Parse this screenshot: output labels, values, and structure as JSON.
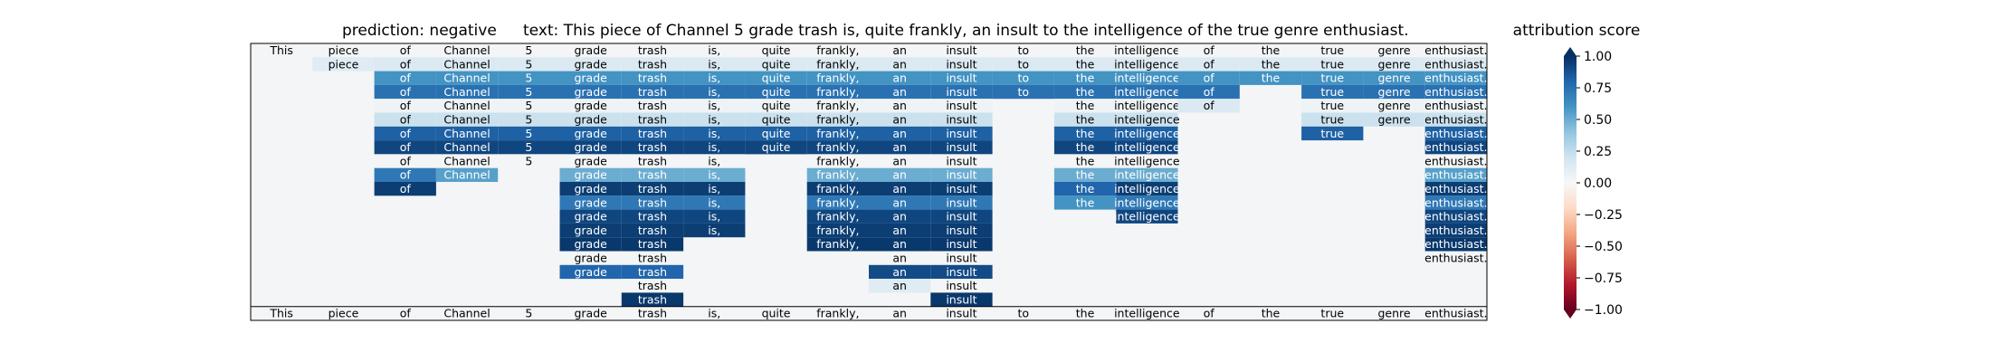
{
  "header": {
    "prediction_label": "prediction:  negative",
    "text_label": "text:  This piece of Channel 5 grade trash is, quite frankly, an insult to the intelligence of the true genre enthusiast.",
    "colorbar_title": "attribution score"
  },
  "chart_data": {
    "type": "heatmap",
    "title": "",
    "tokens": [
      "This",
      "piece",
      "of",
      "Channel",
      "5",
      "grade",
      "trash",
      "is,",
      "quite",
      "frankly,",
      "an",
      "insult",
      "to",
      "the",
      "intelligence",
      "of",
      "the",
      "true",
      "genre",
      "enthusiast."
    ],
    "rows": [
      {
        "start": 0,
        "values": [
          0.02,
          0.02,
          0.02,
          0.02,
          0.02,
          0.02,
          0.02,
          0.02,
          0.02,
          0.02,
          0.02,
          0.02,
          0.02,
          0.02,
          0.02,
          0.02,
          0.02,
          0.02,
          0.02,
          0.02
        ]
      },
      {
        "start": 1,
        "values": [
          0.12,
          0.15,
          0.15,
          0.15,
          0.15,
          0.15,
          0.15,
          0.15,
          0.15,
          0.15,
          0.15,
          0.15,
          0.15,
          0.15,
          0.15,
          0.15,
          0.15,
          0.15,
          0.15
        ]
      },
      {
        "start": 2,
        "values": [
          0.6,
          0.6,
          0.6,
          0.6,
          0.6,
          0.6,
          0.6,
          0.6,
          0.6,
          0.6,
          0.6,
          0.6,
          0.6,
          0.6,
          0.6,
          0.6,
          0.6,
          0.6
        ]
      },
      {
        "start": 2,
        "values": [
          0.75,
          0.75,
          0.75,
          0.75,
          0.75,
          0.75,
          0.75,
          0.75,
          0.75,
          0.75,
          0.75,
          0.75,
          0.75,
          0.75,
          null,
          0.75,
          0.75,
          0.75
        ]
      },
      {
        "start": 2,
        "values": [
          0.05,
          0.05,
          0.05,
          0.05,
          0.05,
          0.05,
          0.05,
          0.05,
          0.05,
          0.05,
          null,
          0.05,
          0.05,
          0.15,
          null,
          0.05,
          0.05,
          0.05
        ]
      },
      {
        "start": 2,
        "values": [
          0.22,
          0.22,
          0.22,
          0.22,
          0.22,
          0.22,
          0.22,
          0.22,
          0.22,
          0.22,
          null,
          0.22,
          0.22,
          null,
          null,
          0.22,
          0.22,
          0.22
        ]
      },
      {
        "start": 2,
        "values": [
          0.82,
          0.82,
          0.82,
          0.82,
          0.82,
          0.82,
          0.82,
          0.82,
          0.82,
          0.82,
          null,
          0.82,
          0.82,
          null,
          null,
          0.82,
          null,
          0.82
        ]
      },
      {
        "start": 2,
        "values": [
          0.92,
          0.92,
          0.92,
          0.92,
          0.92,
          0.92,
          0.92,
          0.92,
          0.92,
          0.92,
          null,
          0.92,
          0.92,
          null,
          null,
          null,
          null,
          0.92
        ]
      },
      {
        "start": 2,
        "values": [
          0.02,
          0.02,
          0.02,
          0.02,
          0.02,
          0.02,
          null,
          0.02,
          0.02,
          0.02,
          null,
          0.02,
          0.02,
          null,
          null,
          null,
          null,
          0.02
        ]
      },
      {
        "start": 2,
        "values": [
          0.72,
          0.55,
          null,
          0.5,
          0.5,
          0.5,
          null,
          0.5,
          0.5,
          0.5,
          null,
          0.5,
          0.5,
          null,
          null,
          null,
          null,
          0.55
        ]
      },
      {
        "start": 2,
        "values": [
          0.95,
          null,
          null,
          0.95,
          0.95,
          0.95,
          null,
          0.95,
          0.95,
          0.95,
          null,
          0.8,
          0.95,
          null,
          null,
          null,
          null,
          0.95
        ]
      },
      {
        "start": 5,
        "values": [
          0.72,
          0.72,
          0.72,
          null,
          0.72,
          0.72,
          0.72,
          null,
          0.6,
          0.72,
          null,
          null,
          null,
          null,
          0.72
        ]
      },
      {
        "start": 5,
        "values": [
          0.92,
          0.92,
          0.92,
          null,
          0.92,
          0.92,
          0.92,
          null,
          null,
          0.92,
          null,
          null,
          null,
          null,
          0.92
        ]
      },
      {
        "start": 5,
        "values": [
          0.95,
          0.95,
          0.95,
          null,
          0.95,
          0.95,
          0.95,
          null,
          null,
          null,
          null,
          null,
          null,
          null,
          0.95
        ]
      },
      {
        "start": 5,
        "values": [
          0.97,
          0.97,
          null,
          null,
          0.97,
          0.97,
          0.97,
          null,
          null,
          null,
          null,
          null,
          null,
          null,
          0.97
        ]
      },
      {
        "start": 5,
        "values": [
          0.02,
          0.02,
          null,
          null,
          null,
          0.02,
          0.02,
          null,
          null,
          null,
          null,
          null,
          null,
          null,
          0.02
        ]
      },
      {
        "start": 5,
        "values": [
          0.8,
          0.8,
          null,
          null,
          null,
          0.9,
          0.9
        ]
      },
      {
        "start": 6,
        "values": [
          0.02,
          null,
          null,
          null,
          0.12,
          0.02
        ]
      },
      {
        "start": 6,
        "values": [
          0.97,
          null,
          null,
          null,
          null,
          0.97
        ]
      }
    ],
    "xlabel_tokens_bottom": [
      "This",
      "piece",
      "of",
      "Channel",
      "5",
      "grade",
      "trash",
      "is,",
      "quite",
      "frankly,",
      "an",
      "insult",
      "to",
      "the",
      "intelligence",
      "of",
      "the",
      "true",
      "genre",
      "enthusiast."
    ],
    "colorbar": {
      "label": "attribution score",
      "range": [
        -1.0,
        1.0
      ],
      "ticks": [
        "1.00",
        "0.75",
        "0.50",
        "0.25",
        "0.00",
        "−0.25",
        "−0.50",
        "−0.75",
        "−1.00"
      ],
      "colormap": "RdBu"
    },
    "grid": false
  }
}
